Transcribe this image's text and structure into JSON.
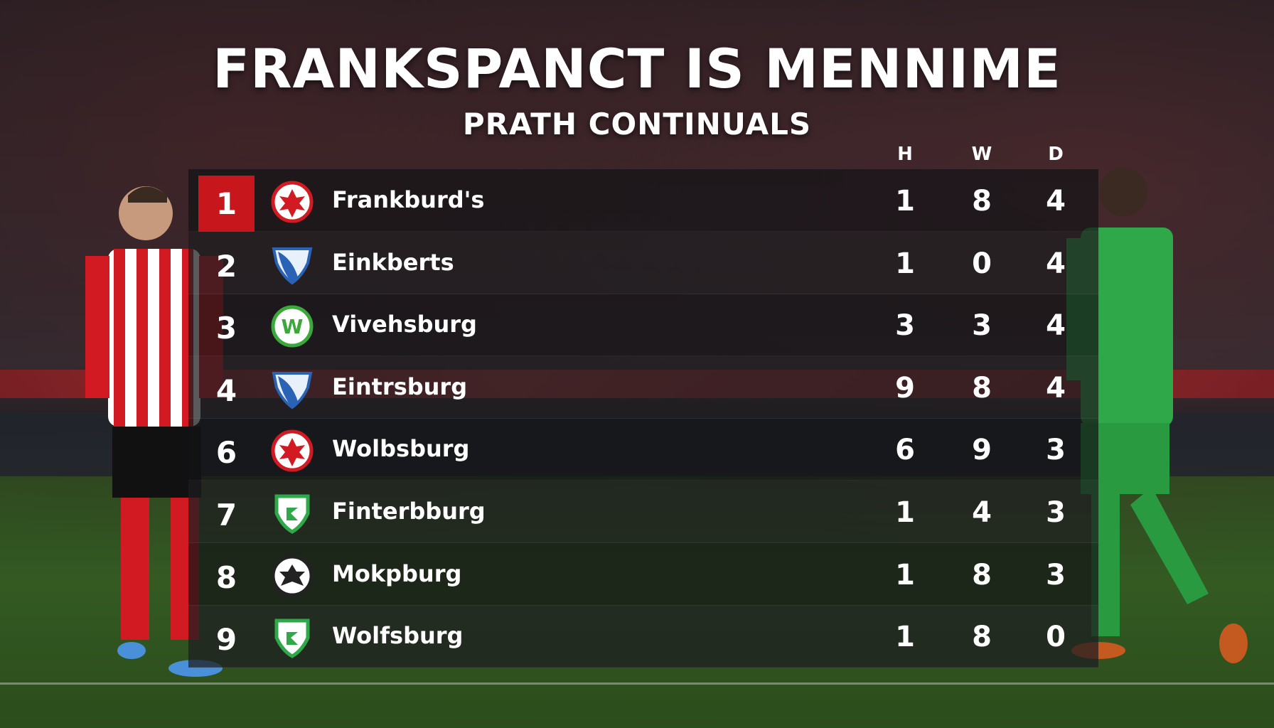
{
  "header": {
    "title": "FRANKSPANCT IS MENNIME",
    "subtitle": "PRATH CONTINUALS"
  },
  "columns": [
    "H",
    "W",
    "D"
  ],
  "colors": {
    "highlight": "#c8161d"
  },
  "rows": [
    {
      "rank": "1",
      "team": "Frankburd's",
      "crest": "eagle-red",
      "h": "1",
      "w": "8",
      "d": "4"
    },
    {
      "rank": "2",
      "team": "Einkberts",
      "crest": "shield-blue",
      "h": "1",
      "w": "0",
      "d": "4"
    },
    {
      "rank": "3",
      "team": "Vivehsburg",
      "crest": "wolf-green",
      "h": "3",
      "w": "3",
      "d": "4"
    },
    {
      "rank": "4",
      "team": "Eintrsburg",
      "crest": "shield-blue",
      "h": "9",
      "w": "8",
      "d": "4"
    },
    {
      "rank": "6",
      "team": "Wolbsburg",
      "crest": "eagle-red",
      "h": "6",
      "w": "9",
      "d": "3"
    },
    {
      "rank": "7",
      "team": "Finterbburg",
      "crest": "shield-green",
      "h": "1",
      "w": "4",
      "d": "3"
    },
    {
      "rank": "8",
      "team": "Mokpburg",
      "crest": "eagle-black",
      "h": "1",
      "w": "8",
      "d": "3"
    },
    {
      "rank": "9",
      "team": "Wolfsburg",
      "crest": "shield-green",
      "h": "1",
      "w": "8",
      "d": "0"
    }
  ]
}
